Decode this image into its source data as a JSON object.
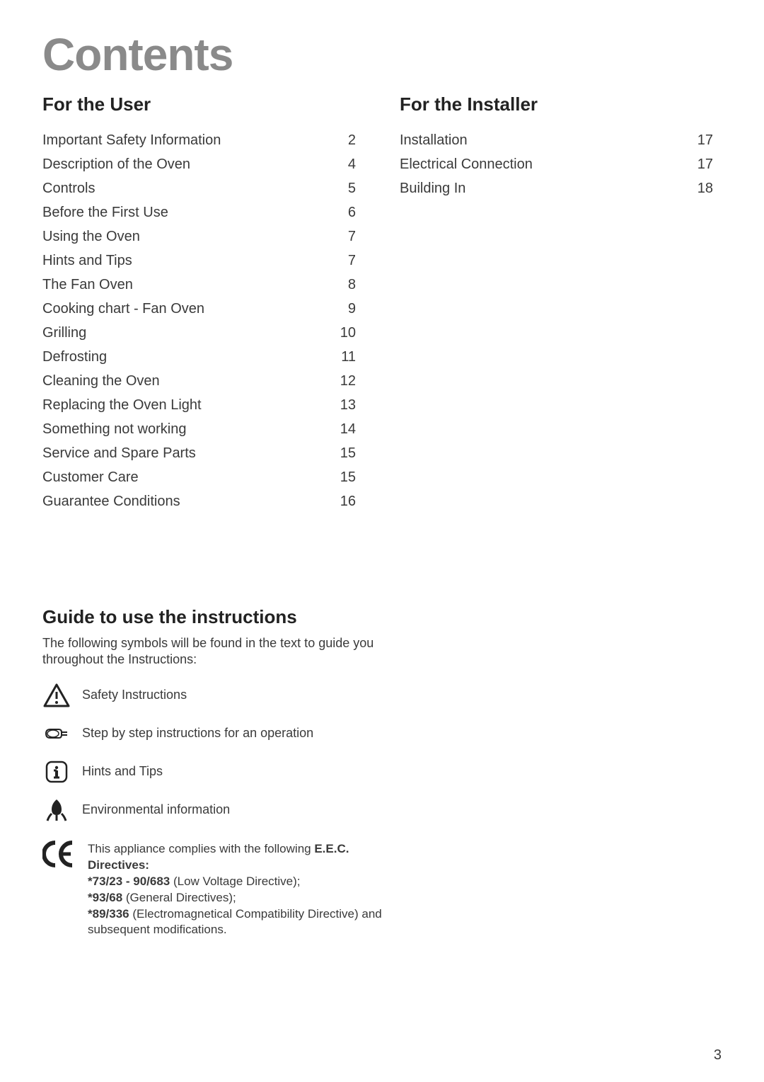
{
  "title": "Contents",
  "sections": {
    "user": {
      "heading": "For the User",
      "items": [
        {
          "label": "Important Safety Information",
          "page": "2"
        },
        {
          "label": "Description of the Oven",
          "page": "4"
        },
        {
          "label": "Controls",
          "page": "5"
        },
        {
          "label": "Before the First Use",
          "page": "6"
        },
        {
          "label": "Using the Oven",
          "page": "7"
        },
        {
          "label": "Hints and Tips",
          "page": "7"
        },
        {
          "label": "The Fan Oven",
          "page": "8"
        },
        {
          "label": "Cooking chart - Fan Oven",
          "page": "9"
        },
        {
          "label": "Grilling",
          "page": "10"
        },
        {
          "label": "Defrosting",
          "page": "11"
        },
        {
          "label": "Cleaning the Oven",
          "page": "12"
        },
        {
          "label": "Replacing the Oven Light",
          "page": "13"
        },
        {
          "label": "Something not working",
          "page": "14"
        },
        {
          "label": "Service and Spare Parts",
          "page": "15"
        },
        {
          "label": "Customer Care",
          "page": "15"
        },
        {
          "label": "Guarantee Conditions",
          "page": "16"
        }
      ]
    },
    "installer": {
      "heading": "For the Installer",
      "items": [
        {
          "label": "Installation",
          "page": "17"
        },
        {
          "label": "Electrical Connection",
          "page": "17"
        },
        {
          "label": "Building In",
          "page": "18"
        }
      ]
    }
  },
  "guide": {
    "heading": "Guide to use the instructions",
    "intro": "The following symbols will be found in the text to guide you throughout the Instructions:",
    "symbols": [
      {
        "icon": "warning",
        "label": "Safety Instructions"
      },
      {
        "icon": "pointer",
        "label": "Step by step instructions for an operation"
      },
      {
        "icon": "info",
        "label": "Hints and Tips"
      },
      {
        "icon": "leaf",
        "label": "Environmental information"
      }
    ]
  },
  "compliance": {
    "intro_prefix": "This appliance complies with the following ",
    "intro_bold": "E.E.C. Directives:",
    "lines": [
      {
        "bold": "*73/23 - 90/683",
        "rest": " (Low Voltage Directive);"
      },
      {
        "bold": "*93/68",
        "rest": " (General Directives);"
      },
      {
        "bold": "*89/336",
        "rest": " (Electromagnetical Compatibility Directive) and subsequent modifications."
      }
    ]
  },
  "pageNumber": "3"
}
